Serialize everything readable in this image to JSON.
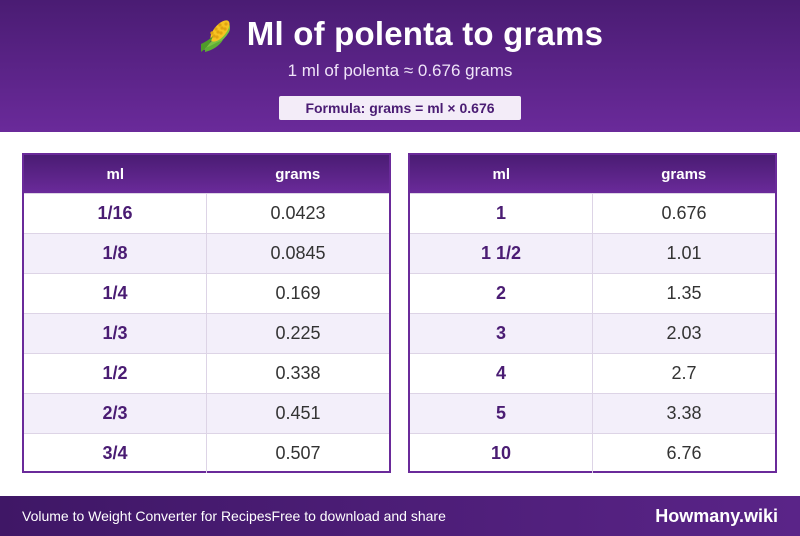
{
  "header": {
    "title": "Ml of polenta to grams",
    "subtitle": "1 ml of polenta ≈ 0.676 grams",
    "formula": "Formula: grams = ml × 0.676",
    "icon": "corn-icon"
  },
  "tables": {
    "left": {
      "col1": "ml",
      "col2": "grams",
      "rows": [
        {
          "ml": "1/16",
          "grams": "0.0423"
        },
        {
          "ml": "1/8",
          "grams": "0.0845"
        },
        {
          "ml": "1/4",
          "grams": "0.169"
        },
        {
          "ml": "1/3",
          "grams": "0.225"
        },
        {
          "ml": "1/2",
          "grams": "0.338"
        },
        {
          "ml": "2/3",
          "grams": "0.451"
        },
        {
          "ml": "3/4",
          "grams": "0.507"
        }
      ]
    },
    "right": {
      "col1": "ml",
      "col2": "grams",
      "rows": [
        {
          "ml": "1",
          "grams": "0.676"
        },
        {
          "ml": "1 1/2",
          "grams": "1.01"
        },
        {
          "ml": "2",
          "grams": "1.35"
        },
        {
          "ml": "3",
          "grams": "2.03"
        },
        {
          "ml": "4",
          "grams": "2.7"
        },
        {
          "ml": "5",
          "grams": "3.38"
        },
        {
          "ml": "10",
          "grams": "6.76"
        }
      ]
    }
  },
  "footer": {
    "left_text": "Volume to Weight Converter for Recipes",
    "middle_text": "Free to download and share",
    "brand": "Howmany.wiki"
  },
  "colors": {
    "primary": "#6a2a9a",
    "primary_dark": "#4a1c73",
    "row_alt": "#f3effa"
  }
}
